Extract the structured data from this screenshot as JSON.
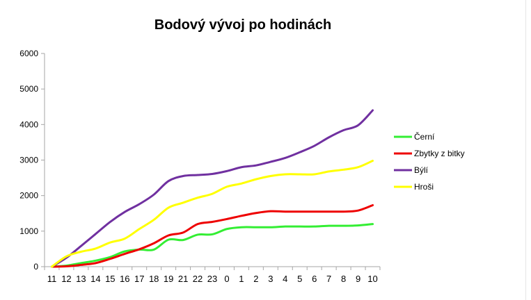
{
  "chart_data": {
    "type": "line",
    "title": "Bodový vývoj po hodinách",
    "xlabel": "",
    "ylabel": "",
    "ylim": [
      0,
      6000
    ],
    "yticks": [
      0,
      1000,
      2000,
      3000,
      4000,
      5000,
      6000
    ],
    "categories": [
      "11",
      "12",
      "13",
      "14",
      "15",
      "16",
      "17",
      "18",
      "19",
      "21",
      "22",
      "23",
      "0",
      "1",
      "2",
      "3",
      "4",
      "5",
      "6",
      "7",
      "8",
      "9",
      "10"
    ],
    "grid": false,
    "legend": "right",
    "series": [
      {
        "name": "Černí",
        "color": "#33ee33",
        "values": [
          0,
          30,
          100,
          170,
          270,
          430,
          480,
          480,
          760,
          750,
          900,
          910,
          1060,
          1110,
          1110,
          1110,
          1130,
          1130,
          1130,
          1150,
          1150,
          1160,
          1200
        ]
      },
      {
        "name": "Zbytky z bitky",
        "color": "#ee0000",
        "values": [
          0,
          10,
          50,
          100,
          220,
          360,
          490,
          660,
          880,
          960,
          1200,
          1260,
          1340,
          1430,
          1510,
          1560,
          1550,
          1550,
          1550,
          1550,
          1550,
          1580,
          1730
        ]
      },
      {
        "name": "Býlí",
        "color": "#7030a0",
        "values": [
          0,
          250,
          580,
          920,
          1260,
          1540,
          1760,
          2030,
          2410,
          2550,
          2580,
          2610,
          2690,
          2800,
          2850,
          2950,
          3060,
          3220,
          3400,
          3640,
          3840,
          3980,
          4400
        ]
      },
      {
        "name": "Hroši",
        "color": "#ffff00",
        "values": [
          0,
          290,
          420,
          510,
          680,
          790,
          1060,
          1320,
          1660,
          1800,
          1940,
          2050,
          2250,
          2340,
          2460,
          2550,
          2600,
          2600,
          2600,
          2680,
          2730,
          2800,
          2980
        ]
      }
    ]
  }
}
